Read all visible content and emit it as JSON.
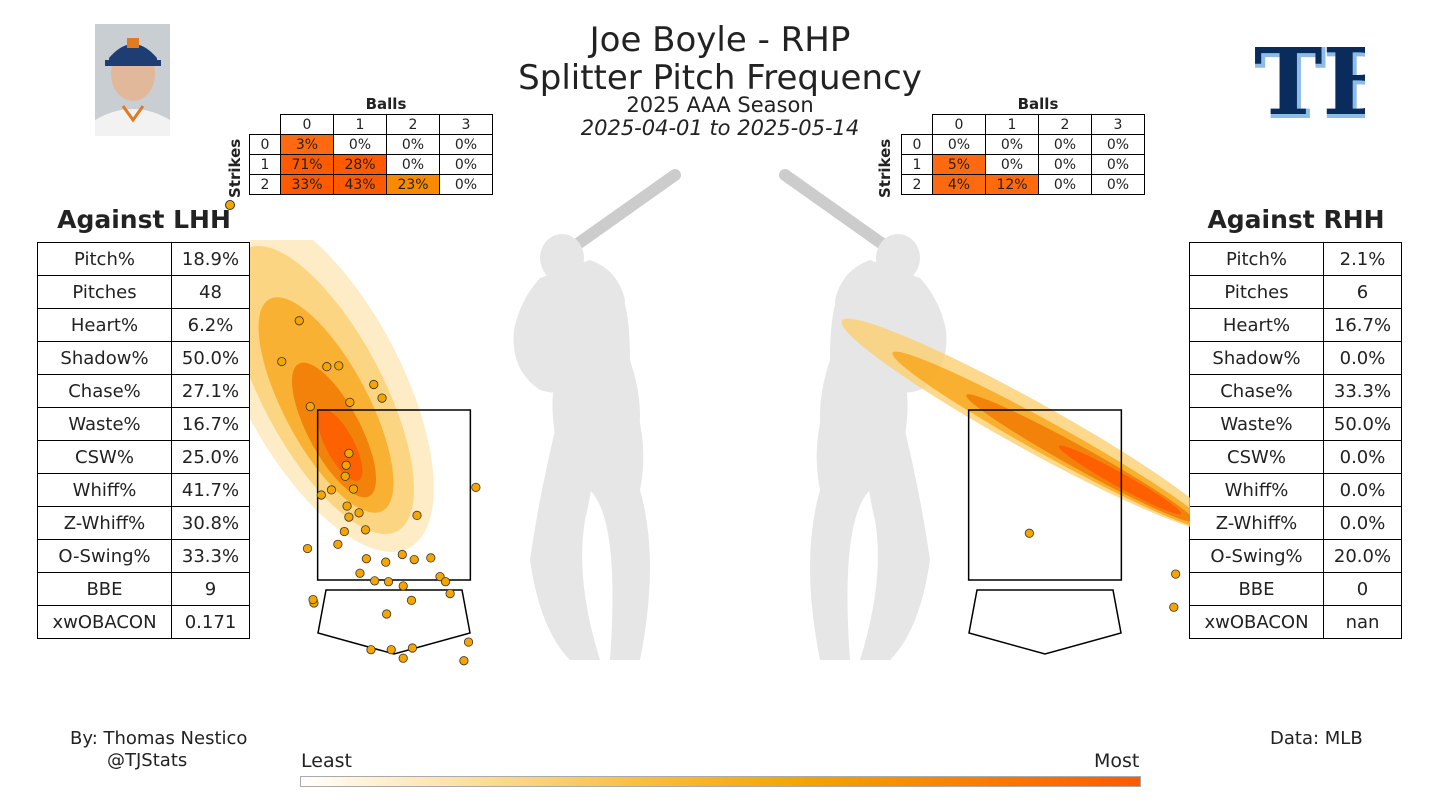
{
  "header": {
    "title_line1": "Joe Boyle - RHP",
    "title_line2": "Splitter Pitch Frequency",
    "season": "2025 AAA Season",
    "date_range": "2025-04-01 to 2025-05-14"
  },
  "team_logo": {
    "text": "TB",
    "color": "#092C5C",
    "accent": "#8FBCE6"
  },
  "colors": {
    "low": "#fff5e0",
    "mid": "#f5a800",
    "high": "#ff5500",
    "dot": "#f6a500"
  },
  "lhh": {
    "title": "Against LHH",
    "stats": [
      {
        "label": "Pitch%",
        "value": "18.9%"
      },
      {
        "label": "Pitches",
        "value": "48"
      },
      {
        "label": "Heart%",
        "value": "6.2%"
      },
      {
        "label": "Shadow%",
        "value": "50.0%"
      },
      {
        "label": "Chase%",
        "value": "27.1%"
      },
      {
        "label": "Waste%",
        "value": "16.7%"
      },
      {
        "label": "CSW%",
        "value": "25.0%"
      },
      {
        "label": "Whiff%",
        "value": "41.7%"
      },
      {
        "label": "Z-Whiff%",
        "value": "30.8%"
      },
      {
        "label": "O-Swing%",
        "value": "33.3%"
      },
      {
        "label": "BBE",
        "value": "9"
      },
      {
        "label": "xwOBACON",
        "value": "0.171"
      }
    ],
    "count_grid": {
      "balls_label": "Balls",
      "strikes_label": "Strikes",
      "balls": [
        "0",
        "1",
        "2",
        "3"
      ],
      "strikes": [
        "0",
        "1",
        "2"
      ],
      "cells": [
        [
          "3%",
          "0%",
          "0%",
          "0%"
        ],
        [
          "71%",
          "28%",
          "0%",
          "0%"
        ],
        [
          "33%",
          "43%",
          "23%",
          "0%"
        ]
      ]
    }
  },
  "rhh": {
    "title": "Against RHH",
    "stats": [
      {
        "label": "Pitch%",
        "value": "2.1%"
      },
      {
        "label": "Pitches",
        "value": "6"
      },
      {
        "label": "Heart%",
        "value": "16.7%"
      },
      {
        "label": "Shadow%",
        "value": "0.0%"
      },
      {
        "label": "Chase%",
        "value": "33.3%"
      },
      {
        "label": "Waste%",
        "value": "50.0%"
      },
      {
        "label": "CSW%",
        "value": "0.0%"
      },
      {
        "label": "Whiff%",
        "value": "0.0%"
      },
      {
        "label": "Z-Whiff%",
        "value": "0.0%"
      },
      {
        "label": "O-Swing%",
        "value": "20.0%"
      },
      {
        "label": "BBE",
        "value": "0"
      },
      {
        "label": "xwOBACON",
        "value": "nan"
      }
    ],
    "count_grid": {
      "balls_label": "Balls",
      "strikes_label": "Strikes",
      "balls": [
        "0",
        "1",
        "2",
        "3"
      ],
      "strikes": [
        "0",
        "1",
        "2"
      ],
      "cells": [
        [
          "0%",
          "0%",
          "0%",
          "0%"
        ],
        [
          "5%",
          "0%",
          "0%",
          "0%"
        ],
        [
          "4%",
          "12%",
          "0%",
          "0%"
        ]
      ]
    }
  },
  "credits": {
    "by": "By: Thomas Nestico",
    "handle": "@TJStats",
    "data": "Data: MLB"
  },
  "scale": {
    "least": "Least",
    "most": "Most"
  },
  "chart_data": {
    "type": "scatter",
    "series": [
      {
        "name": "Against LHH",
        "x": [
          -1.03,
          -0.73,
          -0.48,
          -0.91,
          -0.6,
          -0.22,
          -0.13,
          0.89,
          -0.49,
          -0.52,
          -0.53,
          -0.44,
          -0.68,
          -0.79,
          -0.51,
          -0.38,
          -0.49,
          0.25,
          -0.31,
          -0.54,
          -0.61,
          -0.94,
          -0.3,
          -0.09,
          0.09,
          0.22,
          0.4,
          0.5,
          -0.37,
          -0.21,
          -0.06,
          0.1,
          0.61,
          -0.08,
          0.81,
          -0.03,
          -0.87,
          -0.88,
          0.2,
          0.1,
          -0.25,
          0.76,
          0.56,
          0.19,
          -1.22
        ],
        "y": [
          4.55,
          4.01,
          3.59,
          3.54,
          4.02,
          3.8,
          3.64,
          2.59,
          2.99,
          2.85,
          2.72,
          2.57,
          2.56,
          2.5,
          2.37,
          2.29,
          2.24,
          2.26,
          2.09,
          2.07,
          1.92,
          1.87,
          1.75,
          1.71,
          1.8,
          1.74,
          1.76,
          1.54,
          1.58,
          1.49,
          1.48,
          1.43,
          1.34,
          1.1,
          0.77,
          0.68,
          1.23,
          1.27,
          0.7,
          0.58,
          0.68,
          0.55,
          1.48,
          1.26,
          4.07
        ]
      },
      {
        "name": "Against RHH",
        "x": [
          -0.17,
          1.42,
          1.4
        ],
        "y": [
          2.05,
          1.57,
          1.18
        ]
      }
    ],
    "xlim": [
      -2.0,
      2.0
    ],
    "ylim": [
      0.0,
      5.5
    ],
    "strike_zone": {
      "x": [
        -0.83,
        0.83
      ],
      "y": [
        1.5,
        3.5
      ]
    },
    "colorbar": {
      "min": "Least",
      "max": "Most"
    },
    "grid": false
  }
}
